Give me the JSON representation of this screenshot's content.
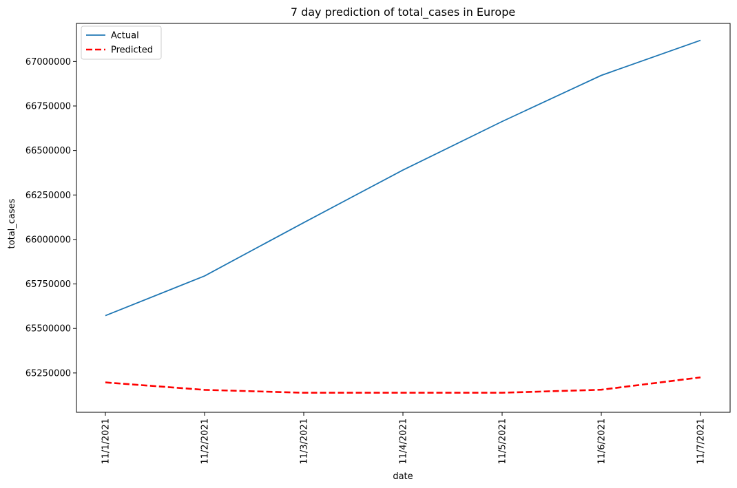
{
  "chart_data": {
    "type": "line",
    "title": "7 day prediction of total_cases in Europe",
    "xlabel": "date",
    "ylabel": "total_cases",
    "categories": [
      "11/1/2021",
      "11/2/2021",
      "11/3/2021",
      "11/4/2021",
      "11/5/2021",
      "11/6/2021",
      "11/7/2021"
    ],
    "yticks": [
      65250000,
      65500000,
      65750000,
      66000000,
      66250000,
      66500000,
      66750000,
      67000000
    ],
    "ylim": [
      65029000,
      67214000
    ],
    "grid": false,
    "legend_position": "top-left",
    "series": [
      {
        "name": "Actual",
        "color": "#1f77b4",
        "style": "solid",
        "values": [
          65572000,
          65795000,
          66095000,
          66390000,
          66663000,
          66922000,
          67119000
        ]
      },
      {
        "name": "Predicted",
        "color": "#ff0000",
        "style": "dashed",
        "values": [
          65197000,
          65155000,
          65139000,
          65139000,
          65139000,
          65156000,
          65225000
        ]
      }
    ]
  }
}
